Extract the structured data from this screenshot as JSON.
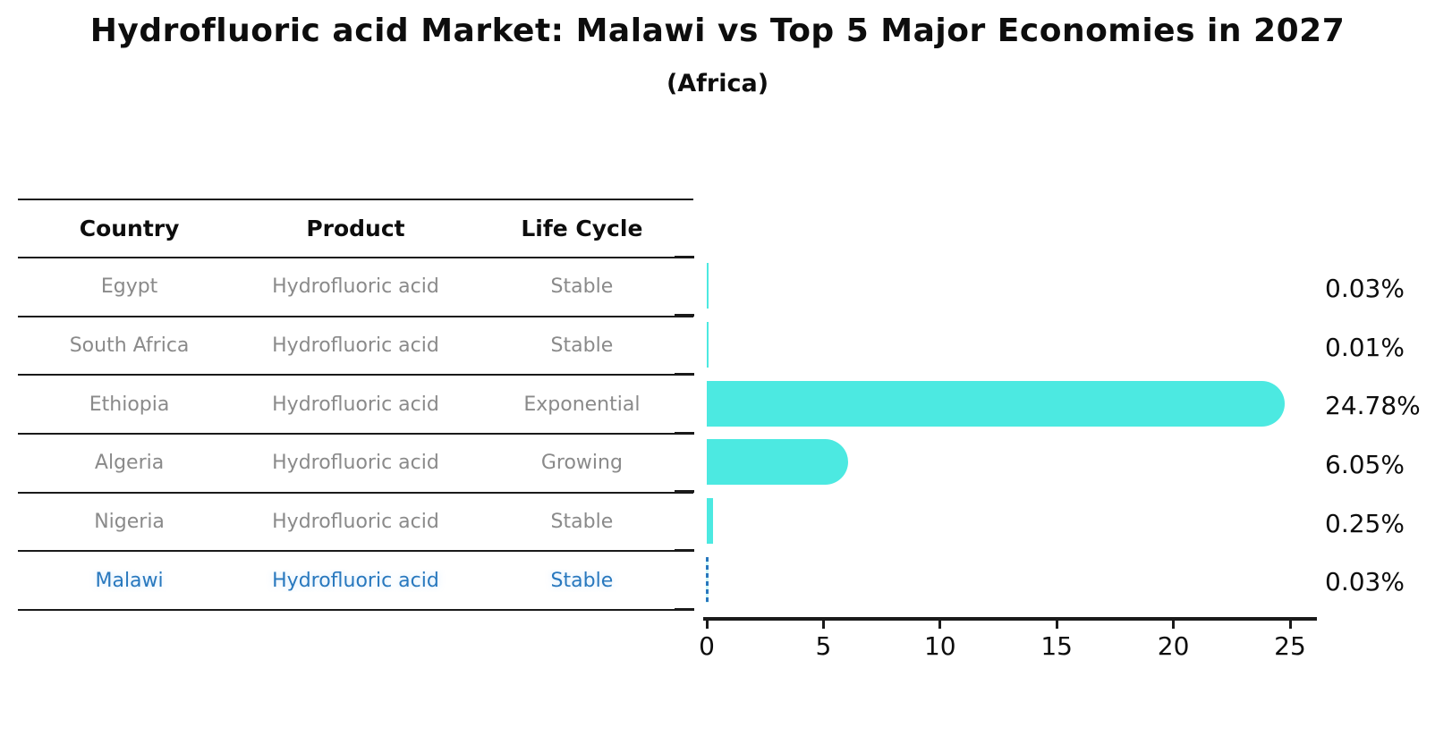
{
  "title": "Hydrofluoric acid Market: Malawi vs Top 5 Major Economies in 2027",
  "subtitle": "(Africa)",
  "colors": {
    "bar": "#4CE9E1",
    "highlight_blue": "#2878be",
    "table_line": "#1a1a1a",
    "muted_text": "#8a8a8a"
  },
  "table": {
    "headers": [
      "Country",
      "Product",
      "Life Cycle"
    ],
    "rows": [
      {
        "country": "Egypt",
        "product": "Hydrofluoric acid",
        "life_cycle": "Stable",
        "highlight": false
      },
      {
        "country": "South Africa",
        "product": "Hydrofluoric acid",
        "life_cycle": "Stable",
        "highlight": false
      },
      {
        "country": "Ethiopia",
        "product": "Hydrofluoric acid",
        "life_cycle": "Exponential",
        "highlight": false
      },
      {
        "country": "Algeria",
        "product": "Hydrofluoric acid",
        "life_cycle": "Growing",
        "highlight": false
      },
      {
        "country": "Nigeria",
        "product": "Hydrofluoric acid",
        "life_cycle": "Stable",
        "highlight": false
      },
      {
        "country": "Malawi",
        "product": "Hydrofluoric acid",
        "life_cycle": "Stable",
        "highlight": true
      }
    ]
  },
  "chart_data": {
    "type": "bar",
    "orientation": "horizontal",
    "title": "Hydrofluoric acid Market: Malawi vs Top 5 Major Economies in 2027",
    "subtitle": "(Africa)",
    "categories": [
      "Egypt",
      "South Africa",
      "Ethiopia",
      "Algeria",
      "Nigeria",
      "Malawi"
    ],
    "values": [
      0.03,
      0.01,
      24.78,
      6.05,
      0.25,
      0.03
    ],
    "value_labels": [
      "0.03%",
      "0.01%",
      "24.78%",
      "6.05%",
      "0.25%",
      "0.03%"
    ],
    "xlabel": "",
    "ylabel": "",
    "xlim": [
      0,
      26.2
    ],
    "x_ticks": [
      0,
      5,
      10,
      15,
      20,
      25
    ],
    "grid": false,
    "legend": false,
    "bar_color": "#4CE9E1",
    "highlight_index": 5,
    "highlight_style": "blue-dashed-outline"
  }
}
